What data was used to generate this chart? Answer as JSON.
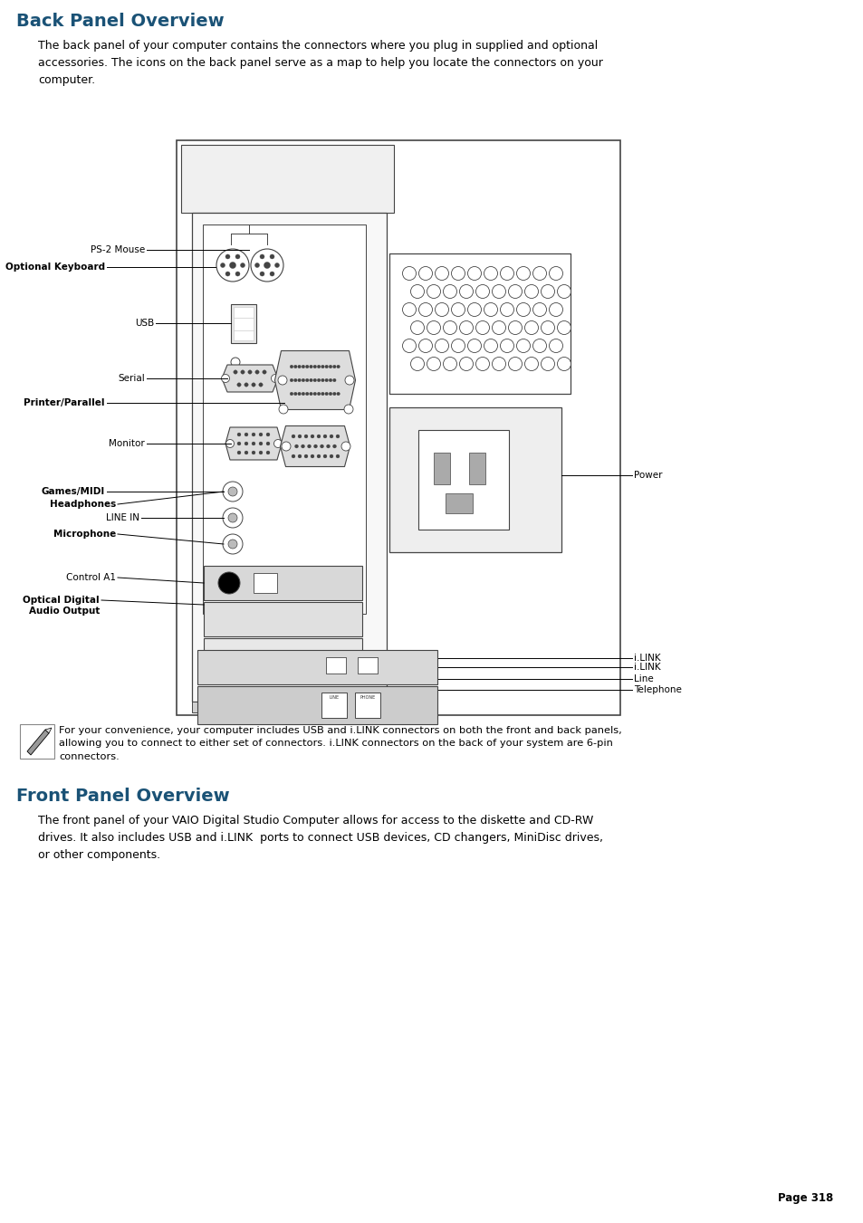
{
  "bg_color": "#ffffff",
  "section1_title": "Back Panel Overview",
  "section1_title_color": "#1a5276",
  "section1_para": "The back panel of your computer contains the connectors where you plug in supplied and optional\naccessories. The icons on the back panel serve as a map to help you locate the connectors on your\ncomputer.",
  "note_text": "For your convenience, your computer includes USB and i.LINK connectors on both the front and back panels,\nallowing you to connect to either set of connectors. i.LINK connectors on the back of your system are 6-pin\nconnectors.",
  "section2_title": "Front Panel Overview",
  "section2_title_color": "#1a5276",
  "section2_para": "The front panel of your VAIO Digital Studio Computer allows for access to the diskette and CD-RW\ndrives. It also includes USB and i.LINK  ports to connect USB devices, CD changers, MiniDisc drives,\nor other components.",
  "page_number": "Page 318"
}
